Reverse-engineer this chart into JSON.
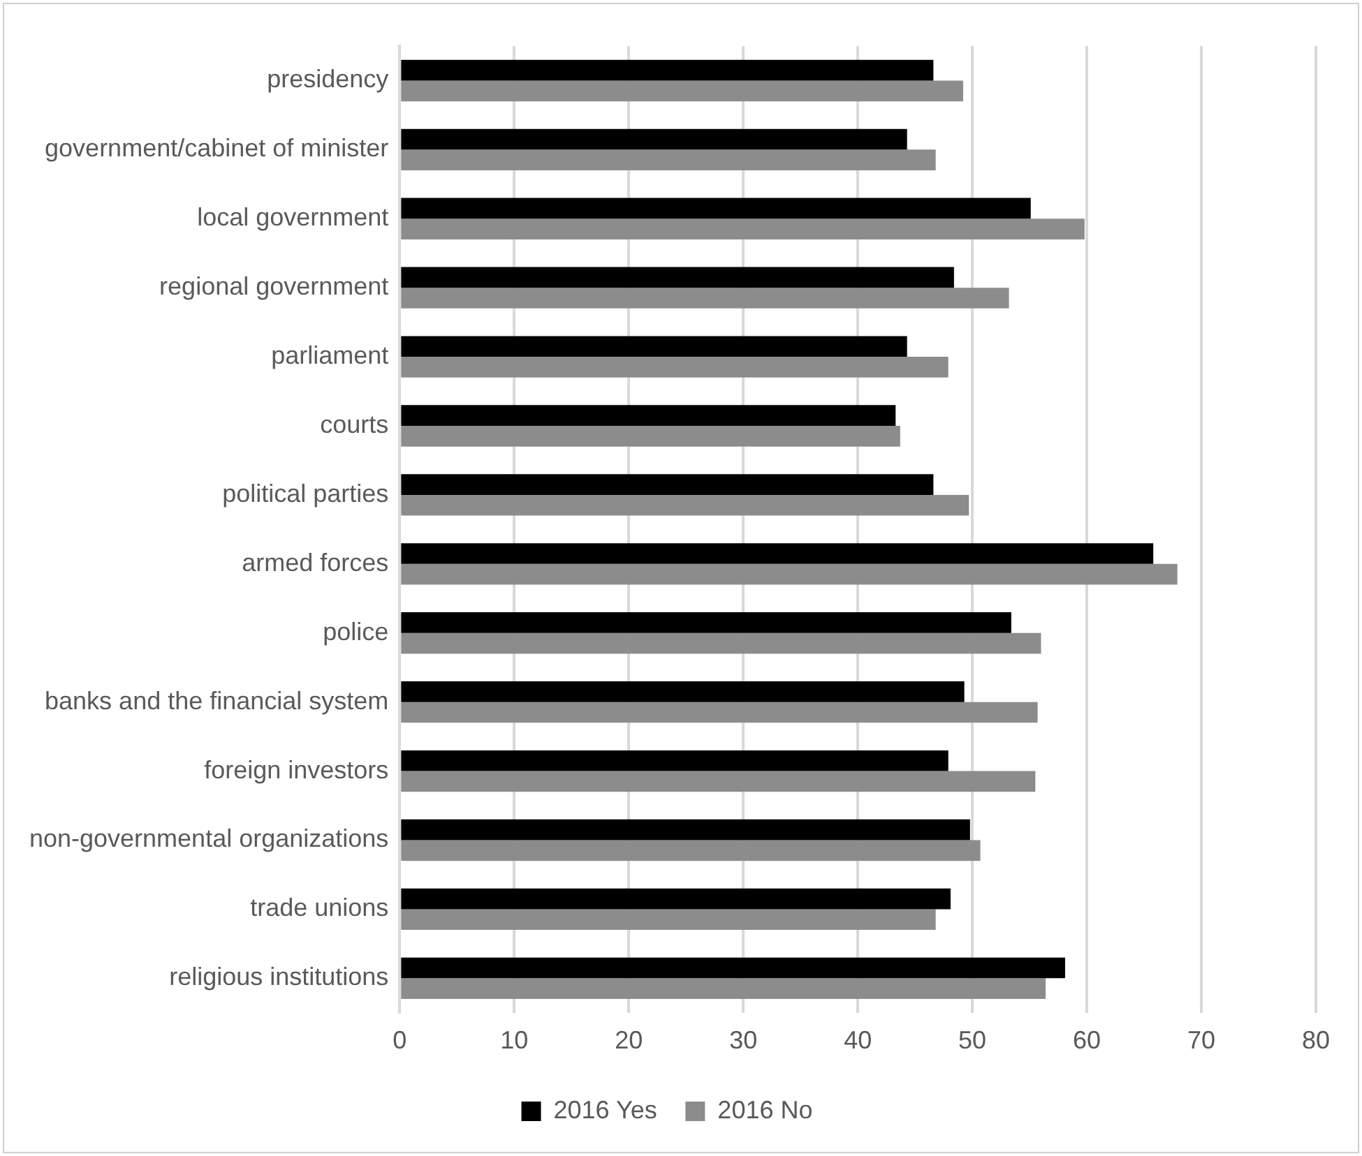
{
  "chart_data": {
    "type": "bar",
    "orientation": "horizontal",
    "categories": [
      "presidency",
      "government/cabinet of minister",
      "local government",
      "regional government",
      "parliament",
      "courts",
      "political parties",
      "armed forces",
      "police",
      "banks and the financial system",
      "foreign investors",
      "non-governmental organizations",
      "trade unions",
      "religious institutions"
    ],
    "series": [
      {
        "name": "2016 Yes",
        "color": "#000000",
        "values": [
          46.6,
          44.3,
          55.1,
          48.4,
          44.3,
          43.3,
          46.6,
          65.8,
          53.4,
          49.3,
          47.9,
          49.8,
          48.1,
          58.1
        ]
      },
      {
        "name": "2016 No",
        "color": "#8c8c8c",
        "values": [
          49.2,
          46.8,
          59.8,
          53.2,
          47.9,
          43.7,
          49.7,
          67.9,
          56.0,
          55.7,
          55.5,
          50.7,
          46.8,
          56.4
        ]
      }
    ],
    "xlim": [
      0,
      80
    ],
    "xticks": [
      0,
      10,
      20,
      30,
      40,
      50,
      60,
      70,
      80
    ],
    "grid": "x",
    "legend": "bottom"
  }
}
